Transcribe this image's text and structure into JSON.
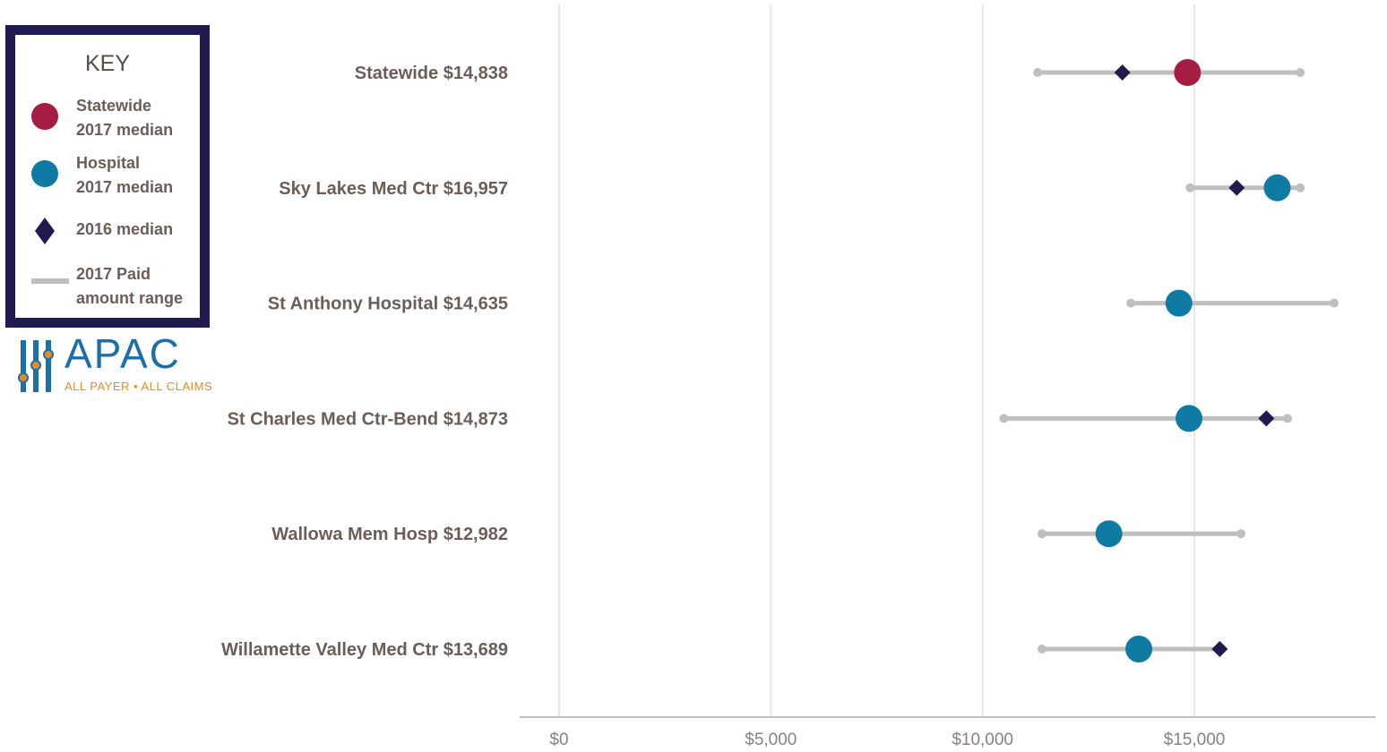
{
  "key": {
    "title": "KEY",
    "items": [
      {
        "label": "Statewide\n2017 median",
        "marker": "circle",
        "color": "#a51d43"
      },
      {
        "label": "Hospital\n2017 median",
        "marker": "circle",
        "color": "#0f7aa3"
      },
      {
        "label": "2016 median",
        "marker": "diamond",
        "color": "#221a4e"
      },
      {
        "label": "2017 Paid\namount range",
        "marker": "line",
        "color": "#bfbfbf"
      }
    ]
  },
  "logo": {
    "name": "APAC",
    "tagline": "ALL PAYER • ALL CLAIMS"
  },
  "chart_data": {
    "type": "dot-range",
    "x_axis": {
      "min": 0,
      "max": 19000,
      "ticks": [
        0,
        5000,
        10000,
        15000
      ],
      "tick_labels": [
        "$0",
        "$5,000",
        "$10,000",
        "$15,000"
      ]
    },
    "grid": "vertical",
    "colors": {
      "statewide_2017": "#a51d43",
      "hospital_2017": "#0f7aa3",
      "median_2016": "#221a4e",
      "range": "#bfbfbf",
      "grid": "#e6e6e6",
      "axis": "#bfbfbf"
    },
    "rows": [
      {
        "label": "Statewide $14,838",
        "kind": "statewide",
        "median_2017": 14838,
        "median_2016": 13300,
        "range_min": 11300,
        "range_max": 17500
      },
      {
        "label": "Sky Lakes Med Ctr $16,957",
        "kind": "hospital",
        "median_2017": 16957,
        "median_2016": 16000,
        "range_min": 14900,
        "range_max": 17500
      },
      {
        "label": "St Anthony Hospital $14,635",
        "kind": "hospital",
        "median_2017": 14635,
        "median_2016": null,
        "range_min": 13500,
        "range_max": 18300
      },
      {
        "label": "St Charles Med Ctr-Bend $14,873",
        "kind": "hospital",
        "median_2017": 14873,
        "median_2016": 16700,
        "range_min": 10500,
        "range_max": 17200
      },
      {
        "label": "Wallowa Mem Hosp $12,982",
        "kind": "hospital",
        "median_2017": 12982,
        "median_2016": null,
        "range_min": 11400,
        "range_max": 16100
      },
      {
        "label": "Willamette Valley Med Ctr $13,689",
        "kind": "hospital",
        "median_2017": 13689,
        "median_2016": 15600,
        "range_min": 11400,
        "range_max": 15600
      }
    ]
  }
}
